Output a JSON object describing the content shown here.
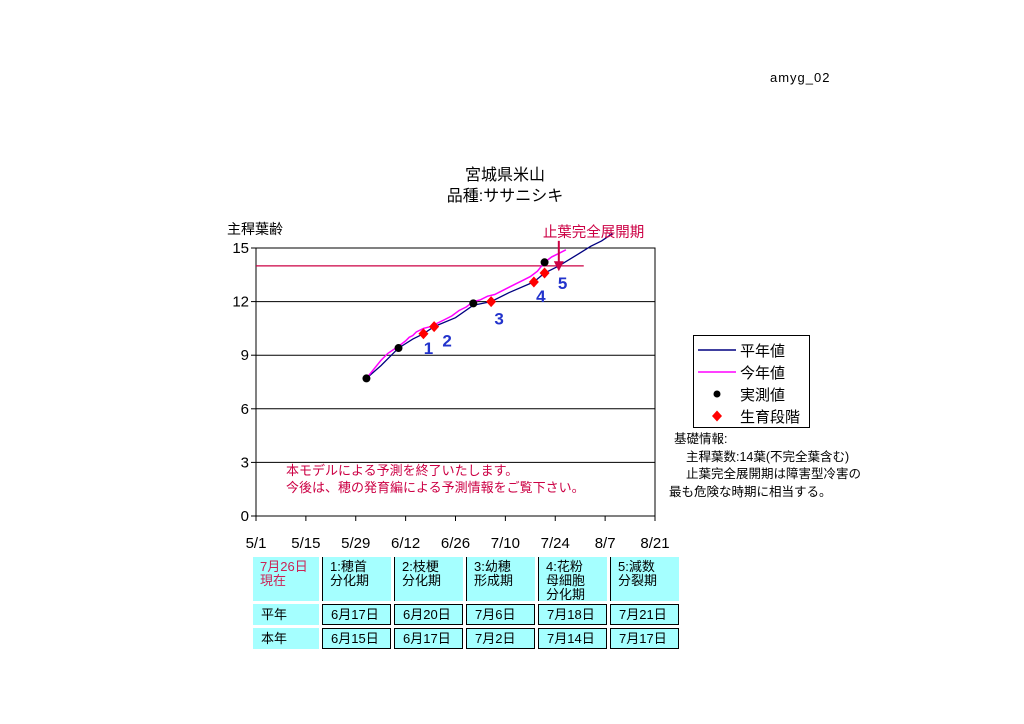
{
  "page": {
    "code_label": "amyg_02"
  },
  "title": {
    "line1": "宮城県米山",
    "line2": "品種:ササニシキ"
  },
  "chart_data": {
    "type": "line",
    "ylabel": "主稈葉齢",
    "ylim": [
      0,
      15
    ],
    "yticks": [
      0,
      3,
      6,
      9,
      12,
      15
    ],
    "xtick_labels": [
      "5/1",
      "5/15",
      "5/29",
      "6/12",
      "6/26",
      "7/10",
      "7/24",
      "8/7",
      "8/21"
    ],
    "xtick_days": [
      0,
      14,
      28,
      42,
      56,
      70,
      84,
      98,
      112
    ],
    "x_range_days": 112,
    "grid": "horizontal",
    "legend_position": "right",
    "series": [
      {
        "name": "平年値",
        "color": "#000080",
        "points": [
          [
            31,
            7.7
          ],
          [
            35,
            8.4
          ],
          [
            40,
            9.4
          ],
          [
            44,
            9.9
          ],
          [
            47,
            10.2
          ],
          [
            50,
            10.6
          ],
          [
            56,
            11.1
          ],
          [
            61,
            11.8
          ],
          [
            66,
            12.0
          ],
          [
            71,
            12.5
          ],
          [
            78,
            13.1
          ],
          [
            81,
            13.6
          ],
          [
            85,
            14.0
          ],
          [
            90,
            14.6
          ],
          [
            94,
            15.1
          ],
          [
            97,
            15.4
          ],
          [
            100,
            15.8
          ]
        ]
      },
      {
        "name": "今年値",
        "color": "#ff00ff",
        "points": [
          [
            31,
            7.7
          ],
          [
            33,
            8.2
          ],
          [
            35,
            8.7
          ],
          [
            37,
            9.1
          ],
          [
            40,
            9.5
          ],
          [
            42,
            9.8
          ],
          [
            43,
            10.0
          ],
          [
            44,
            10.1
          ],
          [
            45,
            10.3
          ],
          [
            47,
            10.5
          ],
          [
            49,
            10.6
          ],
          [
            51,
            10.8
          ],
          [
            53,
            11.0
          ],
          [
            55,
            11.2
          ],
          [
            57,
            11.5
          ],
          [
            59,
            11.7
          ],
          [
            61,
            12.0
          ],
          [
            63,
            12.1
          ],
          [
            65,
            12.3
          ],
          [
            67,
            12.4
          ],
          [
            69,
            12.6
          ],
          [
            71,
            12.8
          ],
          [
            73,
            13.0
          ],
          [
            75,
            13.2
          ],
          [
            77,
            13.4
          ],
          [
            79,
            13.7
          ],
          [
            81,
            14.2
          ],
          [
            83,
            14.5
          ],
          [
            85,
            14.7
          ],
          [
            87,
            14.9
          ]
        ]
      }
    ],
    "measured": {
      "name": "実測値",
      "color": "#000000",
      "points": [
        [
          31,
          7.7
        ],
        [
          40,
          9.4
        ],
        [
          61,
          11.9
        ],
        [
          81,
          14.2
        ]
      ],
      "point_dates": [
        "6/1",
        "6/10",
        "7/1",
        "7/21"
      ]
    },
    "growth_stages": {
      "name": "生育段階",
      "color": "#ff0000",
      "label_color": "#2233cc",
      "stages": [
        {
          "num": "1",
          "day": 47,
          "value": 10.2
        },
        {
          "num": "2",
          "day": 50,
          "value": 10.6
        },
        {
          "num": "3",
          "day": 66,
          "value": 12.0
        },
        {
          "num": "4",
          "day": 78,
          "value": 13.1
        },
        {
          "num": "5",
          "day": 81,
          "value": 13.6
        }
      ]
    },
    "reference_line": {
      "value": 14,
      "day_start": 0,
      "day_end": 92,
      "color": "#cc0044"
    },
    "annotation": {
      "text": "止葉完全展開期",
      "color": "#cc0044",
      "day": 85,
      "from_value": 15.4,
      "tip_value": 13.7
    }
  },
  "legend": {
    "items": [
      {
        "label": "平年値",
        "marker": "line",
        "color": "#000080"
      },
      {
        "label": "今年値",
        "marker": "line",
        "color": "#ff00ff"
      },
      {
        "label": "実測値",
        "marker": "dot",
        "color": "#000000"
      },
      {
        "label": "生育段階",
        "marker": "diamond",
        "color": "#ff0000"
      }
    ]
  },
  "notes": {
    "lines": [
      "基礎情報:",
      "主稈葉数:14葉(不完全葉含む)",
      "止葉完全展開期は障害型冷害の",
      "最も危険な時期に相当する。"
    ]
  },
  "forecast_notice": {
    "color": "#cc0044",
    "lines": [
      "本モデルによる予測を終了いたします。",
      "今後は、穂の発育編による予測情報をご覧下さい。"
    ]
  },
  "table": {
    "current_date_label": "7月26日\n現在",
    "current_date_color": "#cc2255",
    "cell_background": "#a5ffff",
    "stage_headers": [
      "1:穂首\n分化期",
      "2:枝梗\n分化期",
      "3:幼穂\n形成期",
      "4:花粉\n母細胞\n分化期",
      "5:減数\n分裂期"
    ],
    "rows": [
      {
        "label": "平年",
        "values": [
          "6月17日",
          "6月20日",
          "7月6日",
          "7月18日",
          "7月21日"
        ]
      },
      {
        "label": "本年",
        "values": [
          "6月15日",
          "6月17日",
          "7月2日",
          "7月14日",
          "7月17日"
        ]
      }
    ]
  }
}
